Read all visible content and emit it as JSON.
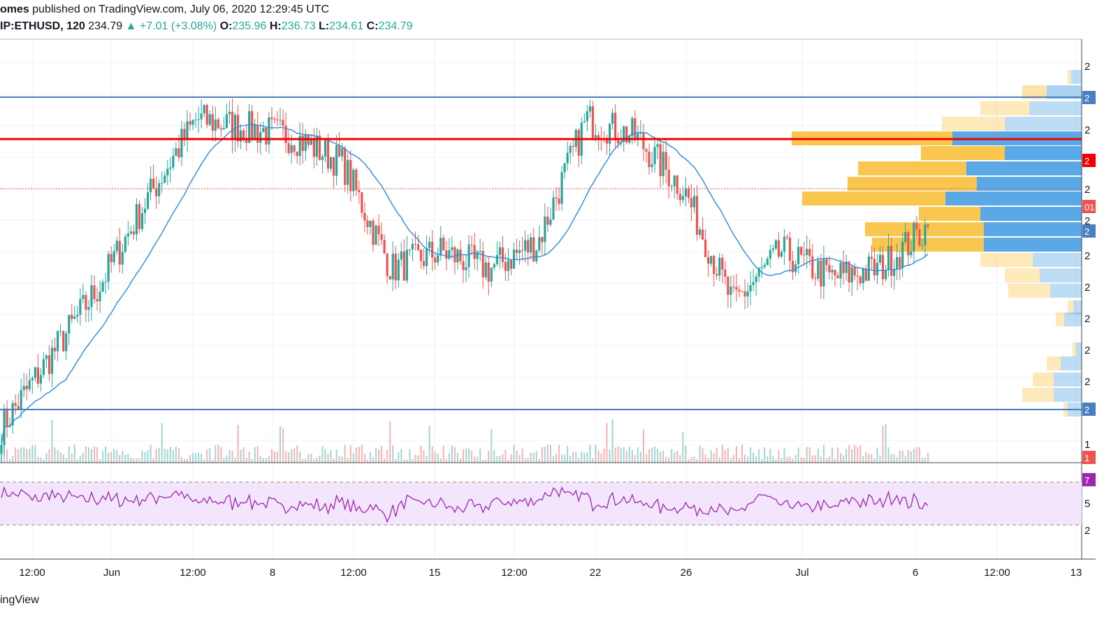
{
  "header": {
    "author": "omes",
    "published": "published on TradingView.com, July 06, 2020 12:29:45 UTC",
    "symbol": "IP:ETHUSD, 120",
    "last": "234.79",
    "arrow": "▲",
    "change": "+7.01 (+3.08%)",
    "o_label": "O:",
    "o_val": "235.96",
    "h_label": "H:",
    "h_val": "236.73",
    "l_label": "L:",
    "l_val": "234.61",
    "c_label": "C:",
    "c_val": "234.79"
  },
  "footer": {
    "brand": "ingView"
  },
  "colors": {
    "up": "#26a69a",
    "down": "#ef5350",
    "ma": "#3b8fd9",
    "resistance_red": "#f20000",
    "level_blue": "#4a7fc1",
    "rsi": "#9c27b0",
    "rsi_band": "#f3e5fb",
    "vp_up": "#f9c74f",
    "vp_down": "#5aa9e6"
  },
  "chart_data": [
    {
      "type": "candlestick",
      "x_ticks": [
        "12:00",
        "Jun",
        "12:00",
        "8",
        "12:00",
        "15",
        "12:00",
        "22",
        "26",
        "Jul",
        "6",
        "12:00",
        "13"
      ],
      "right_axis_visible_fragments": [
        "2",
        "2",
        "2",
        "2",
        "2",
        "01",
        "2",
        "2",
        "2",
        "2",
        "2",
        "2",
        "2",
        "2",
        "1",
        "1"
      ],
      "key_closes": [
        212,
        220,
        228,
        238,
        247,
        246,
        245,
        242,
        230,
        232,
        230,
        233,
        247,
        245,
        239,
        226,
        232,
        229,
        230,
        234.79
      ],
      "horizontal_levels": [
        {
          "name": "upper-blue-line",
          "color": "blue"
        },
        {
          "name": "red-line",
          "color": "red"
        },
        {
          "name": "lower-blue-line",
          "color": "blue"
        }
      ],
      "moving_average": true,
      "volume_profile": true,
      "grid": true
    },
    {
      "type": "line",
      "name": "RSI",
      "band": [
        30,
        70
      ],
      "axis_fragments": [
        "7",
        "5",
        "2"
      ],
      "last_value_tag": "7"
    }
  ]
}
